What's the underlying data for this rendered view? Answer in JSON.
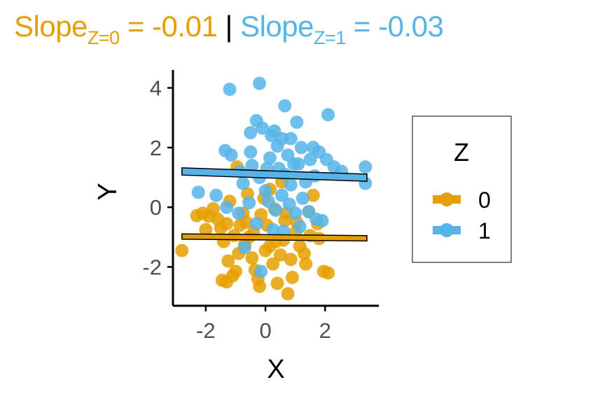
{
  "title": {
    "z0_label": "Slope",
    "z0_sub": "Z=0",
    "z0_value": " = -0.01",
    "separator": " | ",
    "z1_label": "Slope",
    "z1_sub": "Z=1",
    "z1_value": " = -0.03"
  },
  "colors": {
    "z0": "#E69F00",
    "z1": "#56B4E9",
    "axis": "#000000",
    "tick_text": "#4d4d4d"
  },
  "chart_data": {
    "type": "scatter",
    "xlabel": "X",
    "ylabel": "Y",
    "xlim": [
      -3.1,
      3.8
    ],
    "ylim": [
      -3.3,
      4.6
    ],
    "xticks": [
      -2,
      0,
      2
    ],
    "yticks": [
      -2,
      0,
      2,
      4
    ],
    "legend": {
      "title": "Z",
      "position": "right",
      "entries": [
        "0",
        "1"
      ]
    },
    "regression_lines": [
      {
        "group": "0",
        "slope": -0.01,
        "x": [
          -2.8,
          3.4
        ],
        "y": [
          -0.98,
          -1.04
        ],
        "band": 0.09
      },
      {
        "group": "1",
        "slope": -0.03,
        "x": [
          -2.8,
          3.4
        ],
        "y": [
          1.2,
          0.99
        ],
        "band": 0.12
      }
    ],
    "series": [
      {
        "name": "0",
        "points": [
          [
            -2.8,
            -1.45
          ],
          [
            -2.3,
            -0.28
          ],
          [
            -2.1,
            -0.2
          ],
          [
            -1.9,
            -0.3
          ],
          [
            -1.75,
            -0.05
          ],
          [
            -1.6,
            -0.4
          ],
          [
            -1.5,
            -0.7
          ],
          [
            -1.4,
            -1.15
          ],
          [
            -1.3,
            -0.55
          ],
          [
            -1.25,
            -1.8
          ],
          [
            -1.1,
            -2.3
          ],
          [
            -1.3,
            -2.5
          ],
          [
            -1.0,
            -2.15
          ],
          [
            -0.9,
            -1.55
          ],
          [
            -0.85,
            -0.6
          ],
          [
            -0.75,
            -0.2
          ],
          [
            -0.65,
            -0.5
          ],
          [
            -0.55,
            -1.0
          ],
          [
            -0.45,
            -1.7
          ],
          [
            -0.35,
            -2.1
          ],
          [
            -0.25,
            -2.4
          ],
          [
            -0.15,
            -0.25
          ],
          [
            -0.05,
            0.3
          ],
          [
            0.05,
            -0.6
          ],
          [
            0.15,
            -1.3
          ],
          [
            0.25,
            -1.9
          ],
          [
            0.3,
            -0.05
          ],
          [
            0.4,
            -2.55
          ],
          [
            0.5,
            -1.6
          ],
          [
            0.6,
            -1.1
          ],
          [
            0.7,
            -0.2
          ],
          [
            0.75,
            -2.9
          ],
          [
            0.85,
            -1.75
          ],
          [
            1.0,
            -0.85
          ],
          [
            1.15,
            -1.3
          ],
          [
            1.35,
            -1.9
          ],
          [
            1.5,
            -0.95
          ],
          [
            1.6,
            0.4
          ],
          [
            1.75,
            -0.55
          ],
          [
            1.95,
            -2.15
          ],
          [
            2.1,
            -2.2
          ],
          [
            -0.95,
            1.35
          ],
          [
            -1.2,
            0.2
          ],
          [
            -0.6,
            0.45
          ],
          [
            0.15,
            0.6
          ],
          [
            0.55,
            0.85
          ],
          [
            1.05,
            -0.5
          ],
          [
            -1.45,
            -2.45
          ],
          [
            -0.4,
            -0.85
          ],
          [
            0.35,
            -1.15
          ],
          [
            0.9,
            -2.35
          ],
          [
            1.3,
            -1.55
          ],
          [
            -2.0,
            -0.75
          ],
          [
            -0.7,
            -1.25
          ],
          [
            0.0,
            -1.45
          ],
          [
            0.65,
            -0.45
          ],
          [
            1.45,
            -0.15
          ],
          [
            1.8,
            -1.05
          ],
          [
            -1.05,
            -0.95
          ],
          [
            -0.2,
            -2.65
          ]
        ]
      },
      {
        "name": "1",
        "points": [
          [
            -1.2,
            3.95
          ],
          [
            -0.2,
            4.15
          ],
          [
            0.65,
            3.4
          ],
          [
            1.05,
            2.85
          ],
          [
            2.1,
            3.1
          ],
          [
            -0.5,
            2.5
          ],
          [
            -0.3,
            2.9
          ],
          [
            -0.1,
            2.65
          ],
          [
            0.2,
            2.4
          ],
          [
            0.4,
            2.05
          ],
          [
            0.55,
            2.3
          ],
          [
            0.75,
            1.75
          ],
          [
            0.95,
            1.45
          ],
          [
            1.2,
            2.0
          ],
          [
            1.5,
            1.6
          ],
          [
            1.8,
            1.85
          ],
          [
            2.05,
            1.6
          ],
          [
            2.3,
            1.35
          ],
          [
            2.55,
            1.2
          ],
          [
            3.35,
            1.35
          ],
          [
            3.35,
            0.8
          ],
          [
            -1.35,
            1.9
          ],
          [
            -1.15,
            1.75
          ],
          [
            -0.85,
            1.2
          ],
          [
            -0.45,
            1.4
          ],
          [
            -0.2,
            1.0
          ],
          [
            0.0,
            0.55
          ],
          [
            0.1,
            0.2
          ],
          [
            0.35,
            -0.1
          ],
          [
            0.55,
            0.4
          ],
          [
            0.8,
            0.1
          ],
          [
            1.0,
            -0.2
          ],
          [
            1.25,
            0.3
          ],
          [
            1.45,
            -0.15
          ],
          [
            1.7,
            -0.4
          ],
          [
            1.9,
            -0.45
          ],
          [
            -2.25,
            0.5
          ],
          [
            -1.65,
            0.4
          ],
          [
            -1.3,
            0.0
          ],
          [
            -0.9,
            -0.2
          ],
          [
            -0.55,
            0.15
          ],
          [
            -0.3,
            -0.55
          ],
          [
            0.25,
            -0.75
          ],
          [
            0.6,
            -0.8
          ],
          [
            1.15,
            -0.65
          ],
          [
            -0.5,
            1.85
          ],
          [
            0.15,
            1.65
          ],
          [
            0.45,
            1.3
          ],
          [
            0.85,
            0.75
          ],
          [
            1.35,
            0.85
          ],
          [
            1.65,
            1.05
          ],
          [
            -0.15,
            -2.15
          ],
          [
            -0.7,
            -1.35
          ],
          [
            0.3,
            2.55
          ],
          [
            0.85,
            2.3
          ],
          [
            1.6,
            2.0
          ],
          [
            -0.75,
            0.8
          ],
          [
            0.05,
            1.3
          ],
          [
            0.65,
            1.1
          ],
          [
            1.1,
            1.45
          ]
        ]
      }
    ]
  }
}
